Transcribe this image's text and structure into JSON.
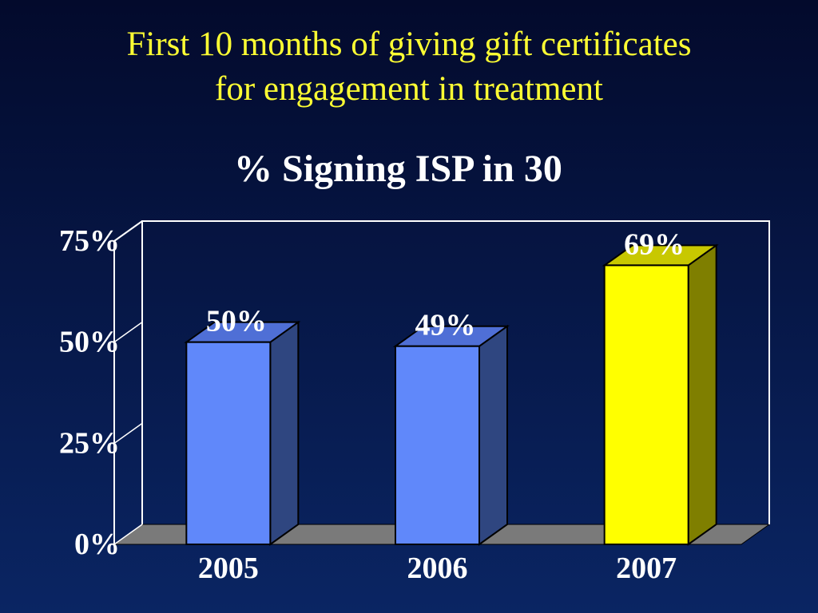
{
  "slide": {
    "title_line1": "First 10 months of giving gift certificates",
    "title_line2": "for engagement in treatment"
  },
  "chart_data": {
    "type": "bar",
    "title": "% Signing ISP in 30",
    "categories": [
      "2005",
      "2006",
      "2007"
    ],
    "values": [
      50,
      49,
      69
    ],
    "value_labels": [
      "50%",
      "49%",
      "69%"
    ],
    "y_ticks": [
      0,
      25,
      50,
      75
    ],
    "y_tick_labels": [
      "0%",
      "25%",
      "50%",
      "75%"
    ],
    "ylim": [
      0,
      75
    ],
    "xlabel": "",
    "ylabel": "",
    "bar_colors": [
      {
        "front": "#6088fa",
        "side": "#2f4680",
        "top": "#4f6fd6"
      },
      {
        "front": "#6088fa",
        "side": "#2f4680",
        "top": "#4f6fd6"
      },
      {
        "front": "#ffff00",
        "side": "#7f7f00",
        "top": "#c8c800"
      }
    ],
    "floor_color": "#7a7a7a",
    "axis_color": "#ffffff",
    "grid": false
  }
}
